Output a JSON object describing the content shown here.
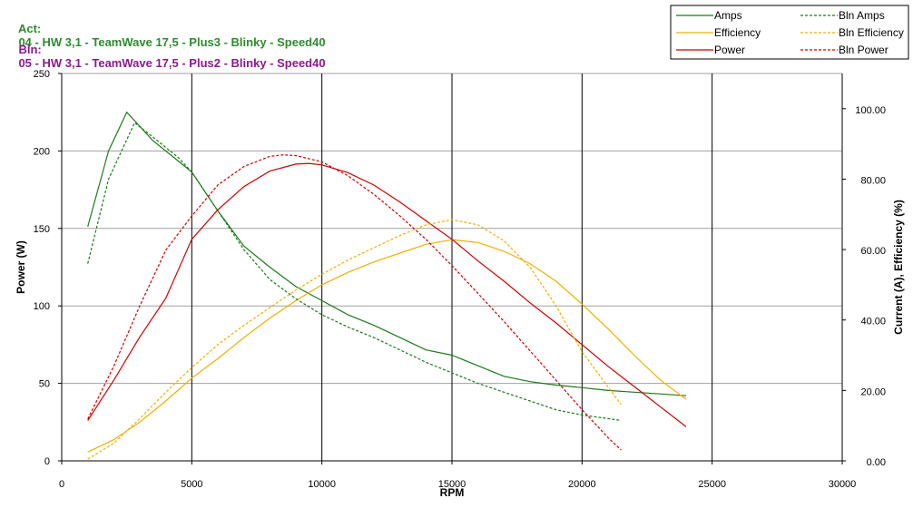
{
  "header": {
    "act_label": "Act:",
    "act_text": "04 - HW 3,1 - TeamWave 17,5 - Plus3 - Blinky - Speed40",
    "bln_label": "Bln:",
    "bln_text": "05 - HW 3,1 - TeamWave 17,5 - Plus2 - Blinky - Speed40",
    "act_color": "#2e8b2e",
    "bln_color": "#8b1a8b"
  },
  "chart_data": {
    "type": "line",
    "xlabel": "RPM",
    "ylabel_left": "Power (W)",
    "ylabel_right": "Current (A), Efficiency (%)",
    "xlim": [
      0,
      30000
    ],
    "ylim_left": [
      0,
      250
    ],
    "ylim_right": [
      0,
      110
    ],
    "x_ticks": [
      "0",
      "5000",
      "10000",
      "15000",
      "20000",
      "25000",
      "30000"
    ],
    "y_left_ticks": [
      "0",
      "50",
      "100",
      "150",
      "200",
      "250"
    ],
    "y_right_ticks": [
      "0.00",
      "20.00",
      "40.00",
      "60.00",
      "80.00",
      "100.00"
    ],
    "grid": "vertical lines at x ticks, horizontal lines at left-axis ticks",
    "legend_position": "top-right",
    "series": [
      {
        "name": "Amps",
        "axis": "right",
        "style": "solid",
        "color": "#1a7a1a",
        "points": [
          [
            1000,
            66.5
          ],
          [
            1800,
            88
          ],
          [
            2500,
            99
          ],
          [
            3500,
            91
          ],
          [
            4500,
            85
          ],
          [
            5000,
            82
          ],
          [
            6000,
            71
          ],
          [
            7000,
            61
          ],
          [
            8000,
            55
          ],
          [
            9000,
            49.5
          ],
          [
            10000,
            45.5
          ],
          [
            11000,
            41.5
          ],
          [
            12000,
            38.5
          ],
          [
            13000,
            35
          ],
          [
            14000,
            31.5
          ],
          [
            15000,
            30
          ],
          [
            16000,
            27
          ],
          [
            17000,
            24
          ],
          [
            18000,
            22.5
          ],
          [
            19000,
            21.5
          ],
          [
            20000,
            20.8
          ],
          [
            21000,
            20
          ],
          [
            22000,
            19.5
          ],
          [
            23000,
            19
          ],
          [
            24000,
            18.5
          ]
        ]
      },
      {
        "name": "Efficiency",
        "axis": "right",
        "style": "solid",
        "color": "#f0b000",
        "points": [
          [
            1000,
            2.5
          ],
          [
            2000,
            6
          ],
          [
            3000,
            11
          ],
          [
            4000,
            17
          ],
          [
            5000,
            23.5
          ],
          [
            6000,
            29
          ],
          [
            7000,
            35
          ],
          [
            8000,
            40.5
          ],
          [
            9000,
            45.5
          ],
          [
            10000,
            50
          ],
          [
            11000,
            53.5
          ],
          [
            12000,
            56.5
          ],
          [
            13000,
            59
          ],
          [
            14000,
            61.5
          ],
          [
            15000,
            62.8
          ],
          [
            16000,
            62
          ],
          [
            17000,
            59.5
          ],
          [
            18000,
            56
          ],
          [
            19000,
            51
          ],
          [
            20000,
            44.5
          ],
          [
            21000,
            37.5
          ],
          [
            22000,
            30
          ],
          [
            23000,
            23
          ],
          [
            24000,
            17.5
          ]
        ]
      },
      {
        "name": "Power",
        "axis": "left",
        "style": "solid",
        "color": "#cc0000",
        "points": [
          [
            1000,
            26
          ],
          [
            2000,
            52
          ],
          [
            3000,
            80
          ],
          [
            4000,
            105
          ],
          [
            5000,
            143
          ],
          [
            6000,
            162
          ],
          [
            7000,
            177
          ],
          [
            8000,
            187
          ],
          [
            9000,
            191.5
          ],
          [
            9500,
            192
          ],
          [
            10000,
            191
          ],
          [
            11000,
            186
          ],
          [
            12000,
            178
          ],
          [
            13000,
            167
          ],
          [
            14000,
            155
          ],
          [
            15000,
            143
          ],
          [
            16000,
            129
          ],
          [
            17000,
            116
          ],
          [
            18000,
            102
          ],
          [
            19000,
            89
          ],
          [
            20000,
            75
          ],
          [
            21000,
            61
          ],
          [
            22000,
            48
          ],
          [
            23000,
            35
          ],
          [
            24000,
            22
          ]
        ]
      },
      {
        "name": "Bln Amps",
        "axis": "right",
        "style": "dashed",
        "color": "#1a7a1a",
        "points": [
          [
            1000,
            56
          ],
          [
            1800,
            80
          ],
          [
            2800,
            96
          ],
          [
            3500,
            92
          ],
          [
            4500,
            86
          ],
          [
            5000,
            82
          ],
          [
            6000,
            71
          ],
          [
            7000,
            60
          ],
          [
            8000,
            51.5
          ],
          [
            9000,
            46
          ],
          [
            10000,
            41.5
          ],
          [
            11000,
            38
          ],
          [
            12000,
            35
          ],
          [
            13000,
            31.5
          ],
          [
            14000,
            28
          ],
          [
            15000,
            25
          ],
          [
            16000,
            22
          ],
          [
            17000,
            19.5
          ],
          [
            18000,
            17
          ],
          [
            19000,
            14.5
          ],
          [
            20000,
            13
          ],
          [
            21000,
            12
          ],
          [
            21500,
            11.5
          ]
        ]
      },
      {
        "name": "Bln Efficiency",
        "axis": "right",
        "style": "dashed",
        "color": "#f0b000",
        "points": [
          [
            1000,
            0.5
          ],
          [
            2000,
            5
          ],
          [
            3000,
            12
          ],
          [
            4000,
            19.5
          ],
          [
            5000,
            26.5
          ],
          [
            6000,
            33
          ],
          [
            7000,
            38.5
          ],
          [
            8000,
            43.5
          ],
          [
            9000,
            48.5
          ],
          [
            10000,
            53
          ],
          [
            11000,
            57
          ],
          [
            12000,
            60.5
          ],
          [
            13000,
            64
          ],
          [
            14000,
            67
          ],
          [
            15000,
            68.5
          ],
          [
            16000,
            67
          ],
          [
            17000,
            62.5
          ],
          [
            18000,
            55
          ],
          [
            19000,
            44
          ],
          [
            20000,
            31
          ],
          [
            21000,
            21
          ],
          [
            21500,
            16
          ]
        ]
      },
      {
        "name": "Bln Power",
        "axis": "left",
        "style": "dashed",
        "color": "#cc0000",
        "points": [
          [
            1000,
            27
          ],
          [
            2000,
            61
          ],
          [
            3000,
            100
          ],
          [
            4000,
            136
          ],
          [
            5000,
            158
          ],
          [
            6000,
            178
          ],
          [
            7000,
            190
          ],
          [
            8000,
            196.5
          ],
          [
            8500,
            197.5
          ],
          [
            9000,
            197
          ],
          [
            10000,
            193
          ],
          [
            11000,
            184
          ],
          [
            12000,
            172
          ],
          [
            13000,
            158
          ],
          [
            14000,
            143
          ],
          [
            15000,
            126
          ],
          [
            16000,
            108
          ],
          [
            17000,
            90
          ],
          [
            18000,
            71
          ],
          [
            19000,
            52
          ],
          [
            20000,
            33
          ],
          [
            21000,
            15
          ],
          [
            21500,
            7
          ]
        ]
      }
    ]
  }
}
